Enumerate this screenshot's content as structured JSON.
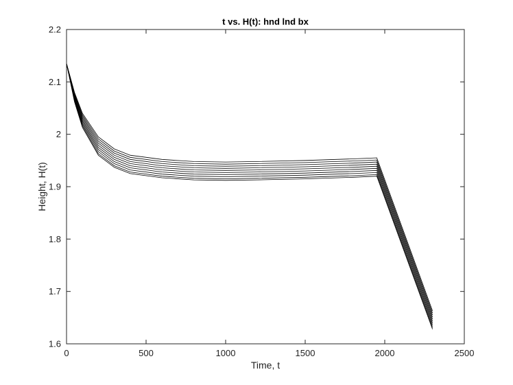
{
  "chart_data": {
    "type": "line",
    "title": "t vs. H(t): hnd lnd bx",
    "xlabel": "Time, t",
    "ylabel": "Height, H(t)",
    "xlim": [
      0,
      2500
    ],
    "ylim": [
      1.6,
      2.2
    ],
    "xticks": [
      "0",
      "500",
      "1000",
      "1500",
      "2000",
      "2500"
    ],
    "yticks": [
      "1.6",
      "1.7",
      "1.8",
      "1.9",
      "2",
      "2.1",
      "2.2"
    ],
    "grid": false,
    "legend": "none",
    "line_color": "#000000",
    "series": [
      {
        "x": [
          0,
          50,
          100,
          200,
          300,
          400,
          600,
          800,
          1000,
          1200,
          1500,
          1800,
          1950,
          2300
        ],
        "y": [
          2.135,
          2.08,
          2.04,
          1.995,
          1.972,
          1.96,
          1.952,
          1.948,
          1.947,
          1.948,
          1.95,
          1.953,
          1.955,
          1.663
        ]
      },
      {
        "x": [
          0,
          50,
          100,
          200,
          300,
          400,
          600,
          800,
          1000,
          1200,
          1500,
          1800,
          1950,
          2300
        ],
        "y": [
          2.135,
          2.078,
          2.037,
          1.991,
          1.968,
          1.956,
          1.948,
          1.944,
          1.943,
          1.944,
          1.946,
          1.949,
          1.951,
          1.659
        ]
      },
      {
        "x": [
          0,
          50,
          100,
          200,
          300,
          400,
          600,
          800,
          1000,
          1200,
          1500,
          1800,
          1950,
          2300
        ],
        "y": [
          2.135,
          2.076,
          2.034,
          1.987,
          1.964,
          1.952,
          1.944,
          1.94,
          1.939,
          1.94,
          1.942,
          1.945,
          1.947,
          1.655
        ]
      },
      {
        "x": [
          0,
          50,
          100,
          200,
          300,
          400,
          600,
          800,
          1000,
          1200,
          1500,
          1800,
          1950,
          2300
        ],
        "y": [
          2.135,
          2.074,
          2.031,
          1.983,
          1.96,
          1.948,
          1.94,
          1.936,
          1.935,
          1.936,
          1.938,
          1.941,
          1.943,
          1.651
        ]
      },
      {
        "x": [
          0,
          50,
          100,
          200,
          300,
          400,
          600,
          800,
          1000,
          1200,
          1500,
          1800,
          1950,
          2300
        ],
        "y": [
          2.135,
          2.072,
          2.028,
          1.979,
          1.956,
          1.944,
          1.936,
          1.932,
          1.931,
          1.932,
          1.934,
          1.937,
          1.939,
          1.647
        ]
      },
      {
        "x": [
          0,
          50,
          100,
          200,
          300,
          400,
          600,
          800,
          1000,
          1200,
          1500,
          1800,
          1950,
          2300
        ],
        "y": [
          2.135,
          2.07,
          2.025,
          1.975,
          1.952,
          1.94,
          1.932,
          1.928,
          1.927,
          1.928,
          1.93,
          1.933,
          1.935,
          1.643
        ]
      },
      {
        "x": [
          0,
          50,
          100,
          200,
          300,
          400,
          600,
          800,
          1000,
          1200,
          1500,
          1800,
          1950,
          2300
        ],
        "y": [
          2.135,
          2.068,
          2.022,
          1.971,
          1.948,
          1.936,
          1.928,
          1.924,
          1.923,
          1.924,
          1.926,
          1.929,
          1.931,
          1.639
        ]
      },
      {
        "x": [
          0,
          50,
          100,
          200,
          300,
          400,
          600,
          800,
          1000,
          1200,
          1500,
          1800,
          1950,
          2300
        ],
        "y": [
          2.135,
          2.066,
          2.019,
          1.967,
          1.944,
          1.932,
          1.924,
          1.92,
          1.919,
          1.92,
          1.922,
          1.925,
          1.927,
          1.635
        ]
      },
      {
        "x": [
          0,
          50,
          100,
          200,
          300,
          400,
          600,
          800,
          1000,
          1200,
          1500,
          1800,
          1950,
          2300
        ],
        "y": [
          2.135,
          2.064,
          2.016,
          1.963,
          1.94,
          1.928,
          1.92,
          1.916,
          1.915,
          1.916,
          1.918,
          1.921,
          1.923,
          1.631
        ]
      },
      {
        "x": [
          0,
          50,
          100,
          200,
          300,
          400,
          600,
          800,
          1000,
          1200,
          1500,
          1800,
          1950,
          2300
        ],
        "y": [
          2.135,
          2.062,
          2.013,
          1.96,
          1.937,
          1.925,
          1.917,
          1.913,
          1.912,
          1.913,
          1.915,
          1.918,
          1.92,
          1.628
        ]
      }
    ]
  }
}
